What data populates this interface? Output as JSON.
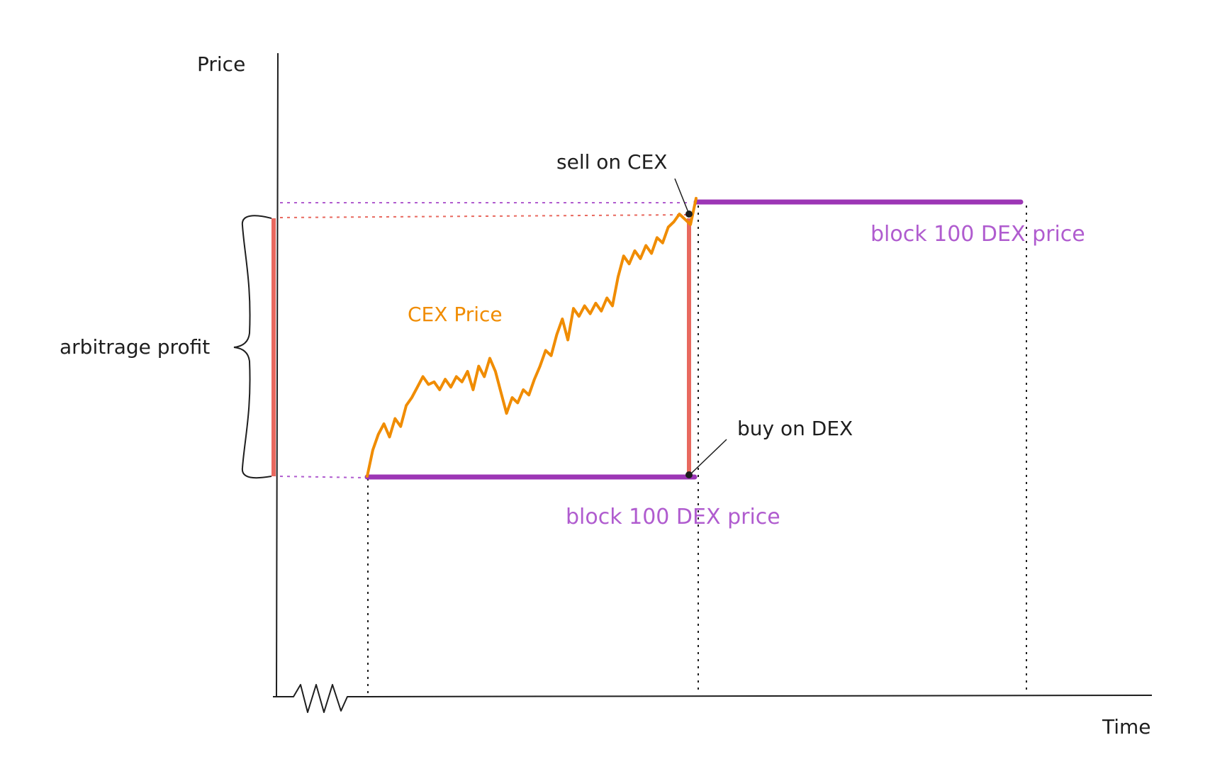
{
  "axes": {
    "y_label": "Price",
    "x_label": "Time"
  },
  "labels": {
    "arbitrage_profit": "arbitrage profit",
    "cex_price": "CEX Price",
    "sell_on_cex": "sell on CEX",
    "buy_on_dex": "buy on DEX",
    "dex_price_before": "block 100 DEX price",
    "dex_price_after": "block 100 DEX price"
  },
  "colors": {
    "dex": "#9c36b5",
    "dex_text": "#b05ccf",
    "cex": "#f08c00",
    "profit": "#e8695f",
    "ink": "#1e1e1e"
  },
  "cex_series": [
    0.0,
    0.1,
    0.16,
    0.2,
    0.15,
    0.22,
    0.19,
    0.27,
    0.3,
    0.34,
    0.38,
    0.35,
    0.36,
    0.33,
    0.37,
    0.34,
    0.38,
    0.36,
    0.4,
    0.33,
    0.42,
    0.38,
    0.45,
    0.4,
    0.32,
    0.24,
    0.3,
    0.28,
    0.33,
    0.31,
    0.37,
    0.42,
    0.48,
    0.46,
    0.54,
    0.6,
    0.52,
    0.64,
    0.61,
    0.65,
    0.62,
    0.66,
    0.63,
    0.68,
    0.65,
    0.76,
    0.84,
    0.81,
    0.86,
    0.83,
    0.88,
    0.85,
    0.91,
    0.89,
    0.95,
    0.97,
    1.0,
    0.98,
    0.96,
    1.06
  ]
}
